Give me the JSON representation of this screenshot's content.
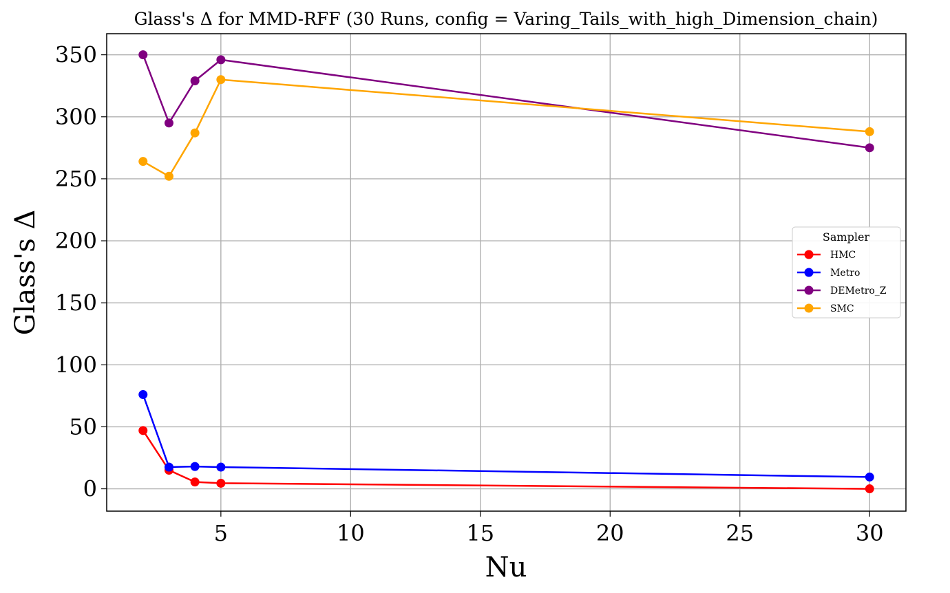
{
  "chart_data": {
    "type": "line",
    "title": "Glass's Δ for MMD-RFF (30 Runs, config = Varing_Tails_with_high_Dimension_chain)",
    "xlabel": "Nu",
    "ylabel": "Glass's Δ",
    "xlim": [
      0.6,
      31.4
    ],
    "ylim": [
      -18,
      367
    ],
    "x_ticks": [
      5,
      10,
      15,
      20,
      25,
      30
    ],
    "y_ticks": [
      0,
      50,
      100,
      150,
      200,
      250,
      300,
      350
    ],
    "grid": true,
    "legend": {
      "title": "Sampler",
      "placement": "center-right"
    },
    "x": [
      2,
      3,
      4,
      5,
      30
    ],
    "series": [
      {
        "name": "HMC",
        "color": "#ff0000",
        "values": [
          47,
          15,
          5.5,
          4.5,
          0
        ]
      },
      {
        "name": "Metro",
        "color": "#0000ff",
        "values": [
          76,
          17.5,
          18,
          17.5,
          9.5
        ]
      },
      {
        "name": "DEMetro_Z",
        "color": "#800080",
        "values": [
          350,
          295,
          329,
          346,
          275
        ]
      },
      {
        "name": "SMC",
        "color": "#ffa500",
        "values": [
          264,
          252,
          287,
          330,
          288
        ]
      }
    ]
  }
}
